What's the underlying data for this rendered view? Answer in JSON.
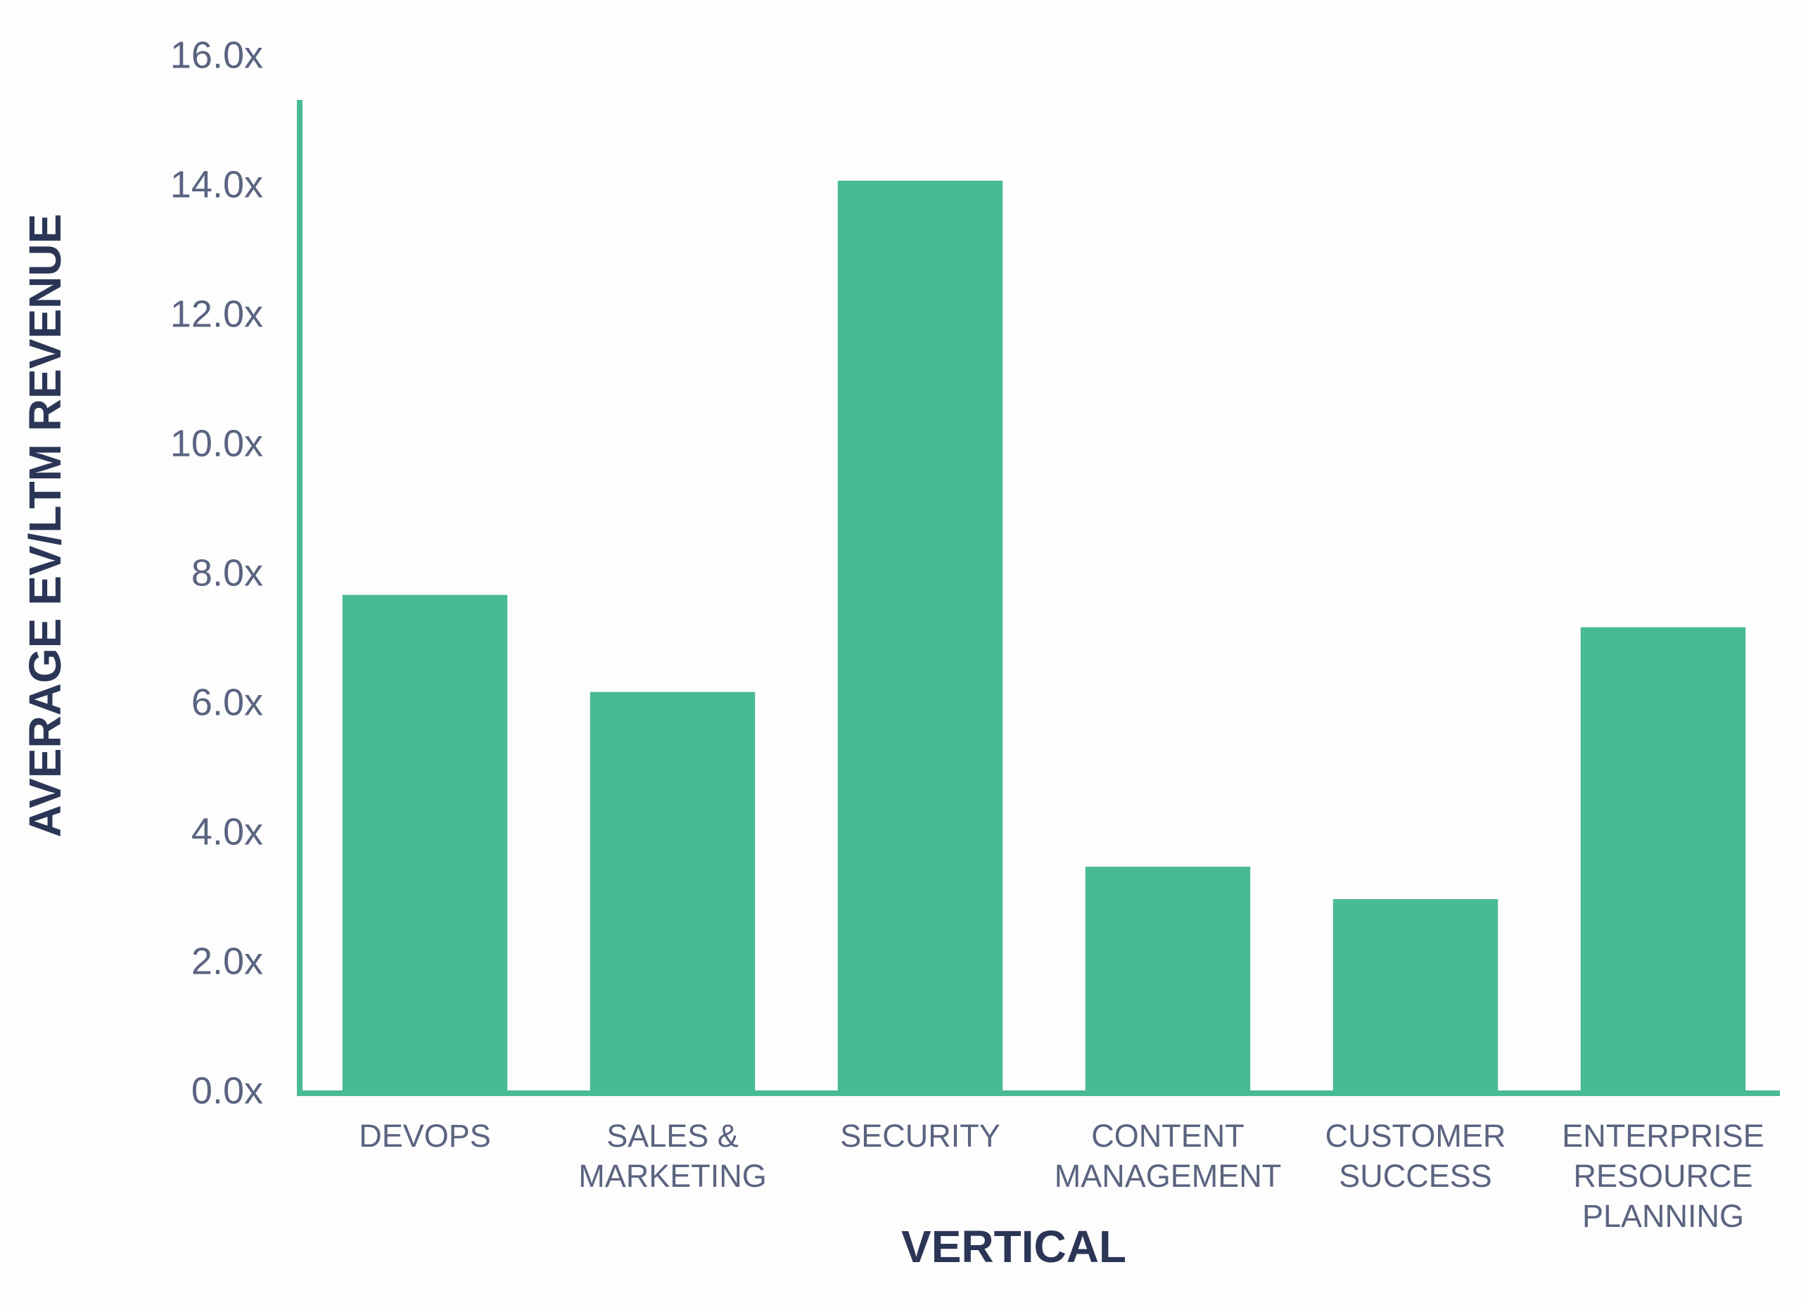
{
  "chart_data": {
    "type": "bar",
    "x_label": "VERTICAL",
    "y_label": "AVERAGE EV/LTM REVENUE",
    "categories": [
      "DEVOPS",
      "SALES &\nMARKETING",
      "SECURITY",
      "CONTENT\nMANAGEMENT",
      "CUSTOMER\nSUCCESS",
      "ENTERPRISE\nRESOURCE\nPLANNING"
    ],
    "values": [
      7.7,
      6.2,
      14.1,
      3.5,
      3.0,
      7.2
    ],
    "color": "#49bb92",
    "ylim": [
      0,
      16
    ],
    "yticks": [
      {
        "value": 0,
        "label": "0.0x"
      },
      {
        "value": 2,
        "label": "2.0x"
      },
      {
        "value": 4,
        "label": "4.0x"
      },
      {
        "value": 6,
        "label": "6.0x"
      },
      {
        "value": 8,
        "label": "8.0x"
      },
      {
        "value": 10,
        "label": "10.0x"
      },
      {
        "value": 12,
        "label": "12.0x"
      },
      {
        "value": 14,
        "label": "14.0x"
      },
      {
        "value": 16,
        "label": "16.0x"
      }
    ],
    "grid": false
  }
}
